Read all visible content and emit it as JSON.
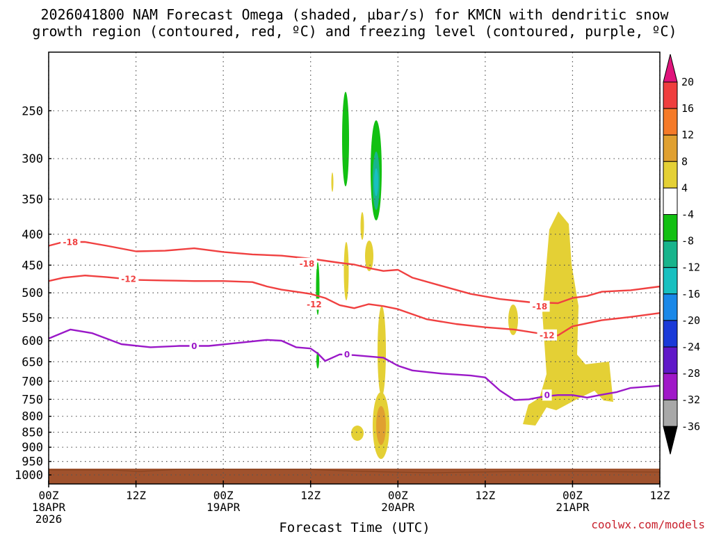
{
  "chart_data": {
    "type": "time-height cross section",
    "title_lines": [
      "2026041800 NAM Forecast Omega (shaded, µbar/s) for KMCN with dendritic snow",
      "growth region (contoured, red, ºC) and freezing level (contoured, purple, ºC)"
    ],
    "xlabel": "Forecast Time (UTC)",
    "credit": "coolwx.com/models",
    "x_ticks": [
      {
        "hour": 0,
        "lines": [
          "00Z",
          "18APR",
          "2026"
        ]
      },
      {
        "hour": 12,
        "lines": [
          "12Z"
        ]
      },
      {
        "hour": 24,
        "lines": [
          "00Z",
          "19APR"
        ]
      },
      {
        "hour": 36,
        "lines": [
          "12Z"
        ]
      },
      {
        "hour": 48,
        "lines": [
          "00Z",
          "20APR"
        ]
      },
      {
        "hour": 60,
        "lines": [
          "12Z"
        ]
      },
      {
        "hour": 72,
        "lines": [
          "00Z",
          "21APR"
        ]
      },
      {
        "hour": 84,
        "lines": [
          "12Z"
        ]
      }
    ],
    "y_ticks": [
      250,
      300,
      350,
      400,
      450,
      500,
      550,
      600,
      650,
      700,
      750,
      800,
      850,
      900,
      950,
      1000
    ],
    "y_range_hpa": [
      200,
      1035
    ],
    "x_range_hours": [
      0,
      84
    ],
    "colorbar": {
      "labels": [
        "20",
        "16",
        "12",
        "8",
        "4",
        "-4",
        "-8",
        "-12",
        "-16",
        "-20",
        "-24",
        "-28",
        "-32",
        "-36"
      ],
      "colors": [
        "#ef3e3e",
        "#f57a28",
        "#e0a030",
        "#e4d035",
        "#ffffff",
        "#12c012",
        "#18b48c",
        "#18c0c0",
        "#1a88e8",
        "#1a3ad8",
        "#6018c8",
        "#a018c8",
        "#a8a8a8"
      ],
      "over_color": "#e0147c",
      "under_color": "#000000"
    },
    "contours": [
      {
        "level": "-18",
        "color": "#f04040",
        "points": [
          [
            0,
            418
          ],
          [
            2,
            412
          ],
          [
            5,
            412
          ],
          [
            8,
            418
          ],
          [
            12,
            427
          ],
          [
            16,
            426
          ],
          [
            20,
            422
          ],
          [
            24,
            428
          ],
          [
            28,
            432
          ],
          [
            32,
            434
          ],
          [
            36,
            439
          ],
          [
            40,
            446
          ],
          [
            42,
            449
          ],
          [
            44,
            455
          ],
          [
            46,
            460
          ],
          [
            48,
            458
          ],
          [
            50,
            472
          ],
          [
            54,
            487
          ],
          [
            58,
            502
          ],
          [
            62,
            512
          ],
          [
            66,
            518
          ],
          [
            70,
            520
          ],
          [
            72,
            510
          ],
          [
            74,
            506
          ],
          [
            76,
            498
          ],
          [
            80,
            495
          ],
          [
            84,
            488
          ]
        ],
        "labels": [
          {
            "x": 3,
            "y": 412,
            "text": "-18"
          },
          {
            "x": 35.5,
            "y": 447,
            "text": "-18"
          },
          {
            "x": 67.5,
            "y": 526,
            "text": "-18"
          }
        ]
      },
      {
        "level": "-12",
        "color": "#f04040",
        "points": [
          [
            0,
            478
          ],
          [
            2,
            472
          ],
          [
            5,
            468
          ],
          [
            8,
            471
          ],
          [
            12,
            476
          ],
          [
            16,
            477
          ],
          [
            20,
            478
          ],
          [
            24,
            478
          ],
          [
            28,
            480
          ],
          [
            30,
            488
          ],
          [
            32,
            494
          ],
          [
            34,
            498
          ],
          [
            36,
            502
          ],
          [
            38,
            510
          ],
          [
            40,
            524
          ],
          [
            42,
            530
          ],
          [
            44,
            522
          ],
          [
            46,
            526
          ],
          [
            48,
            532
          ],
          [
            52,
            553
          ],
          [
            56,
            563
          ],
          [
            60,
            570
          ],
          [
            64,
            575
          ],
          [
            68,
            585
          ],
          [
            70,
            588
          ],
          [
            72,
            568
          ],
          [
            76,
            555
          ],
          [
            80,
            548
          ],
          [
            84,
            540
          ]
        ],
        "labels": [
          {
            "x": 11,
            "y": 474,
            "text": "-12"
          },
          {
            "x": 36.5,
            "y": 522,
            "text": "-12"
          },
          {
            "x": 68.5,
            "y": 587,
            "text": "-12"
          }
        ]
      },
      {
        "level": "0",
        "color": "#9a18c8",
        "points": [
          [
            0,
            595
          ],
          [
            3,
            575
          ],
          [
            6,
            583
          ],
          [
            10,
            608
          ],
          [
            14,
            615
          ],
          [
            18,
            612
          ],
          [
            22,
            612
          ],
          [
            26,
            605
          ],
          [
            30,
            598
          ],
          [
            32,
            600
          ],
          [
            34,
            615
          ],
          [
            36,
            618
          ],
          [
            37,
            630
          ],
          [
            38,
            648
          ],
          [
            40,
            632
          ],
          [
            42,
            634
          ],
          [
            46,
            640
          ],
          [
            48,
            660
          ],
          [
            50,
            672
          ],
          [
            54,
            680
          ],
          [
            58,
            685
          ],
          [
            60,
            690
          ],
          [
            62,
            725
          ],
          [
            64,
            752
          ],
          [
            66,
            750
          ],
          [
            68,
            742
          ],
          [
            70,
            738
          ],
          [
            72,
            738
          ],
          [
            74,
            745
          ],
          [
            76,
            737
          ],
          [
            78,
            730
          ],
          [
            80,
            718
          ],
          [
            84,
            712
          ]
        ],
        "labels": [
          {
            "x": 20,
            "y": 612,
            "text": "0"
          },
          {
            "x": 41,
            "y": 632,
            "text": "0"
          },
          {
            "x": 68.5,
            "y": 738,
            "text": "0"
          }
        ]
      }
    ]
  }
}
